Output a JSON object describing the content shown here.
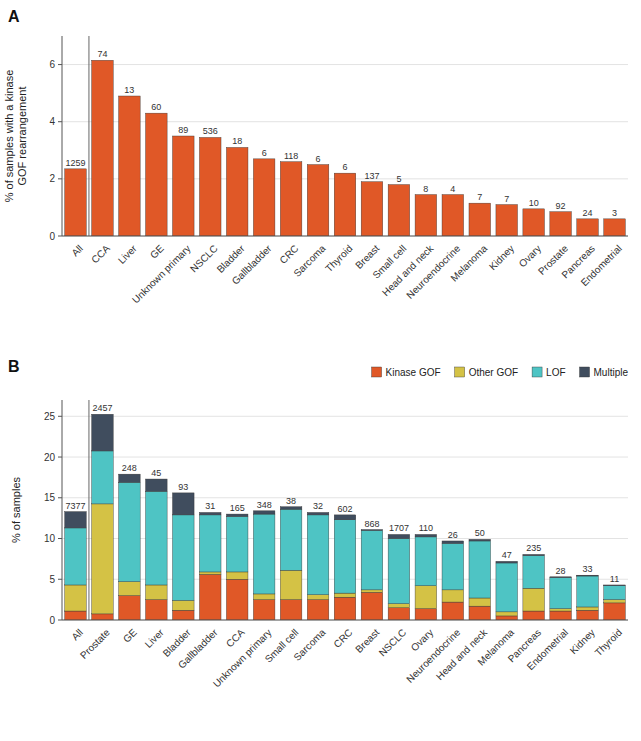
{
  "chart_data": [
    {
      "type": "bar",
      "title": "A",
      "categories": [
        "All",
        "CCA",
        "Liver",
        "GE",
        "Unknown primary",
        "NSCLC",
        "Bladder",
        "Gallbladder",
        "CRC",
        "Sarcoma",
        "Thyroid",
        "Breast",
        "Small cell",
        "Head and neck",
        "Neuroendocrine",
        "Melanoma",
        "Kidney",
        "Ovary",
        "Prostate",
        "Pancreas",
        "Endometrial"
      ],
      "values": [
        2.35,
        6.15,
        4.9,
        4.3,
        3.5,
        3.45,
        3.1,
        2.7,
        2.6,
        2.5,
        2.2,
        1.9,
        1.8,
        1.45,
        1.45,
        1.15,
        1.1,
        0.95,
        0.85,
        0.6,
        0.6
      ],
      "counts": [
        1259,
        74,
        13,
        60,
        89,
        536,
        18,
        6,
        118,
        6,
        6,
        137,
        5,
        8,
        4,
        7,
        7,
        10,
        92,
        24,
        3
      ],
      "color": "#e05827",
      "y_label": "% of samples with a kinase\nGOF rearrangement",
      "ylim": [
        0,
        7
      ],
      "yticks": [
        0,
        2,
        4,
        6
      ],
      "grid": true
    },
    {
      "type": "bar",
      "title": "B",
      "stacked": true,
      "categories": [
        "All",
        "Prostate",
        "GE",
        "Liver",
        "Bladder",
        "Gallbladder",
        "CCA",
        "Unknown primary",
        "Small cell",
        "Sarcoma",
        "CRC",
        "Breast",
        "NSCLC",
        "Ovary",
        "Neuroendocrine",
        "Head and neck",
        "Melanoma",
        "Pancreas",
        "Endometrial",
        "Kidney",
        "Thyroid"
      ],
      "series": [
        {
          "name": "Kinase GOF",
          "color": "#e05827",
          "values": [
            1.1,
            0.75,
            3.0,
            2.5,
            1.2,
            5.6,
            5.0,
            2.5,
            2.5,
            2.5,
            2.8,
            3.4,
            1.5,
            1.4,
            2.2,
            1.7,
            0.5,
            1.1,
            1.1,
            1.2,
            2.1
          ]
        },
        {
          "name": "Other GOF",
          "color": "#d4c245",
          "values": [
            3.2,
            13.5,
            1.7,
            1.8,
            1.2,
            0.3,
            0.9,
            0.7,
            3.6,
            0.6,
            0.5,
            0.3,
            0.5,
            2.8,
            1.5,
            1.0,
            0.5,
            2.8,
            0.3,
            0.4,
            0.4
          ]
        },
        {
          "name": "LOF",
          "color": "#4ec4c4",
          "values": [
            7.0,
            6.5,
            12.2,
            11.5,
            10.5,
            7.0,
            6.8,
            9.8,
            7.5,
            9.8,
            9.0,
            7.3,
            8.0,
            6.0,
            5.7,
            7.0,
            6.0,
            4.0,
            3.8,
            3.8,
            1.7
          ]
        },
        {
          "name": "Multiple",
          "color": "#404d5e",
          "values": [
            2.0,
            4.5,
            1.0,
            1.5,
            2.7,
            0.3,
            0.3,
            0.4,
            0.3,
            0.3,
            0.6,
            0.1,
            0.5,
            0.3,
            0.3,
            0.2,
            0.2,
            0.15,
            0.1,
            0.1,
            0.1
          ]
        }
      ],
      "counts": [
        7377,
        2457,
        248,
        45,
        93,
        31,
        165,
        348,
        38,
        32,
        602,
        868,
        1707,
        110,
        26,
        50,
        47,
        235,
        28,
        33,
        11
      ],
      "y_label": "% of samples",
      "ylim": [
        0,
        27
      ],
      "yticks": [
        0,
        5,
        10,
        15,
        20,
        25
      ],
      "grid": true,
      "legend": "upper right"
    }
  ]
}
